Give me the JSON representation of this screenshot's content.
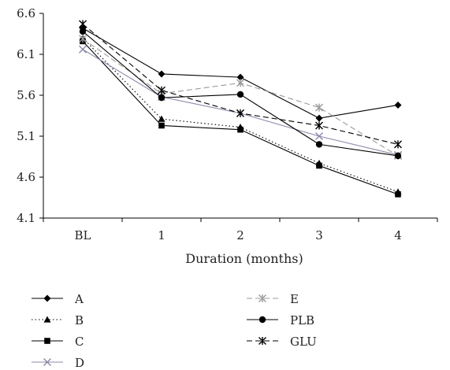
{
  "chart_data": {
    "type": "line",
    "xlabel": "Duration (months)",
    "ylabel": "",
    "categories": [
      "BL",
      "1",
      "2",
      "3",
      "4"
    ],
    "ylim": [
      4.1,
      6.6
    ],
    "yticks": [
      "6.6",
      "6.1",
      "5.6",
      "5.1",
      "4.6",
      "4.1"
    ],
    "grid": false,
    "legend_position": "bottom",
    "series": [
      {
        "name": "A",
        "values": [
          6.42,
          5.86,
          5.82,
          5.32,
          5.48
        ],
        "color": "#000000",
        "dash": "solid",
        "marker": "diamond"
      },
      {
        "name": "B",
        "values": [
          6.3,
          5.31,
          5.21,
          4.77,
          4.42
        ],
        "color": "#000000",
        "dash": "dotted",
        "marker": "triangle"
      },
      {
        "name": "C",
        "values": [
          6.26,
          5.23,
          5.18,
          4.74,
          4.39
        ],
        "color": "#000000",
        "dash": "solid",
        "marker": "square"
      },
      {
        "name": "D",
        "values": [
          6.16,
          5.58,
          5.38,
          5.1,
          4.87
        ],
        "color": "#8a8aaa",
        "dash": "solid",
        "marker": "x"
      },
      {
        "name": "E",
        "values": [
          6.29,
          5.62,
          5.75,
          5.45,
          4.86
        ],
        "color": "#999999",
        "dash": "dashed",
        "marker": "star"
      },
      {
        "name": "PLB",
        "values": [
          6.38,
          5.57,
          5.61,
          5.0,
          4.86
        ],
        "color": "#000000",
        "dash": "solid",
        "marker": "circle"
      },
      {
        "name": "GLU",
        "values": [
          6.47,
          5.66,
          5.38,
          5.23,
          5.0
        ],
        "color": "#000000",
        "dash": "dashed",
        "marker": "star"
      }
    ]
  }
}
